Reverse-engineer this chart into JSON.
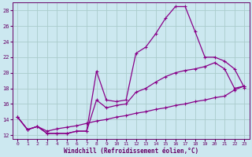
{
  "xlabel": "Windchill (Refroidissement éolien,°C)",
  "bg_color": "#cce8f0",
  "grid_color": "#aacccc",
  "line_color": "#880088",
  "xlim": [
    -0.5,
    23.5
  ],
  "ylim": [
    11.5,
    29.0
  ],
  "yticks": [
    12,
    14,
    16,
    18,
    20,
    22,
    24,
    26,
    28
  ],
  "xticks": [
    0,
    1,
    2,
    3,
    4,
    5,
    6,
    7,
    8,
    9,
    10,
    11,
    12,
    13,
    14,
    15,
    16,
    17,
    18,
    19,
    20,
    21,
    22,
    23
  ],
  "curve1_x": [
    0,
    1,
    2,
    3,
    4,
    5,
    6,
    7,
    8,
    9,
    10,
    11,
    12,
    13,
    14,
    15,
    16,
    17,
    18,
    19,
    20,
    21,
    22,
    23
  ],
  "curve1_y": [
    14.3,
    12.7,
    13.1,
    12.2,
    12.2,
    12.2,
    12.5,
    12.5,
    20.2,
    16.5,
    16.3,
    16.5,
    22.5,
    23.3,
    25.0,
    27.0,
    28.5,
    28.5,
    25.3,
    22.0,
    22.0,
    21.5,
    20.5,
    18.1
  ],
  "curve2_x": [
    0,
    1,
    2,
    3,
    4,
    5,
    6,
    7,
    8,
    9,
    10,
    11,
    12,
    13,
    14,
    15,
    16,
    17,
    18,
    19,
    20,
    21,
    22,
    23
  ],
  "curve2_y": [
    14.3,
    12.7,
    13.1,
    12.2,
    12.2,
    12.2,
    12.5,
    12.5,
    16.5,
    15.5,
    15.8,
    16.0,
    17.5,
    18.0,
    18.8,
    19.5,
    20.0,
    20.3,
    20.5,
    20.8,
    21.3,
    20.5,
    18.0,
    18.3
  ],
  "curve3_x": [
    0,
    1,
    2,
    3,
    4,
    5,
    6,
    7,
    8,
    9,
    10,
    11,
    12,
    13,
    14,
    15,
    16,
    17,
    18,
    19,
    20,
    21,
    22,
    23
  ],
  "curve3_y": [
    14.3,
    12.7,
    13.1,
    12.5,
    12.8,
    13.0,
    13.2,
    13.5,
    13.8,
    14.0,
    14.3,
    14.5,
    14.8,
    15.0,
    15.3,
    15.5,
    15.8,
    16.0,
    16.3,
    16.5,
    16.8,
    17.0,
    17.8,
    18.3
  ]
}
